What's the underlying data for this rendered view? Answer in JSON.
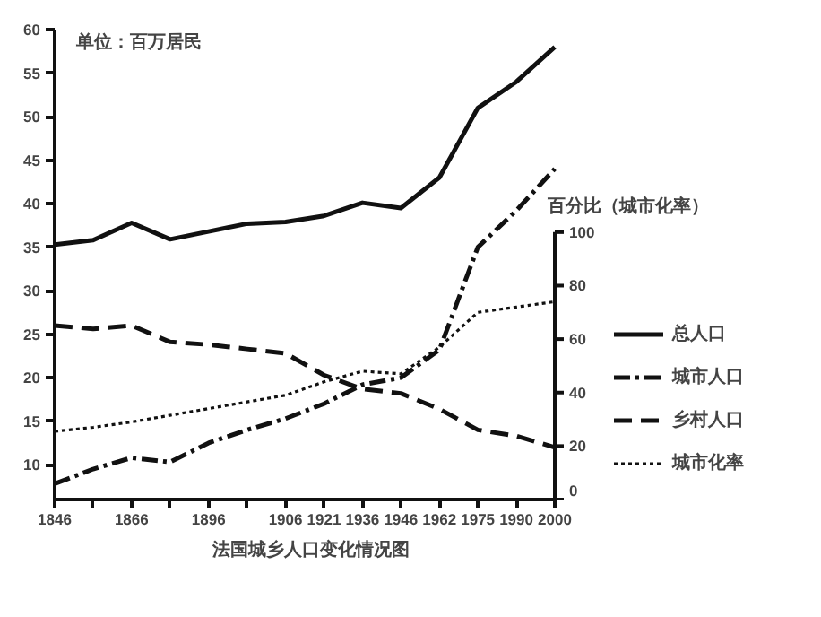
{
  "chart_data": {
    "type": "line",
    "title": "法国城乡人口变化情况图",
    "ylabel": "单位：百万居民",
    "y2label": "百分比（城市化率）",
    "categories": [
      "1846",
      null,
      "1866",
      null,
      "1896",
      null,
      "1906",
      "1921",
      "1936",
      "1946",
      "1962",
      "1975",
      "1990",
      "2000"
    ],
    "series": [
      {
        "name": "总人口",
        "color": "#111111",
        "line_style": "solid",
        "values": [
          35.3,
          35.8,
          37.8,
          35.9,
          36.8,
          37.7,
          37.9,
          38.6,
          40.1,
          39.5,
          43,
          51,
          54,
          58
        ]
      },
      {
        "name": "城市人口",
        "color": "#111111",
        "line_style": "dashdot",
        "values": [
          7.8,
          9.5,
          10.8,
          10.3,
          12.5,
          14,
          15.3,
          17,
          19.2,
          20,
          23.2,
          35,
          39.2,
          44
        ]
      },
      {
        "name": "乡村人口",
        "color": "#111111",
        "line_style": "dashed",
        "values": [
          26,
          25.6,
          26,
          24.1,
          23.8,
          23.3,
          22.8,
          20.3,
          18.7,
          18.2,
          16.4,
          14,
          13.3,
          12
        ]
      },
      {
        "name": "城市化率",
        "color": "#111111",
        "line_style": "dotted",
        "axis": "y2",
        "values": [
          25.5,
          27,
          29,
          31.5,
          34,
          36.5,
          39,
          44,
          48,
          47,
          57,
          70,
          72,
          74
        ]
      }
    ],
    "ylim": [
      6,
      60
    ],
    "yticks": [
      10,
      15,
      20,
      25,
      30,
      35,
      40,
      45,
      50,
      55,
      60
    ],
    "y2lim": [
      0,
      100
    ],
    "y2ticks": [
      0,
      20,
      40,
      60,
      80,
      100
    ],
    "grid": false,
    "legend": "right"
  }
}
